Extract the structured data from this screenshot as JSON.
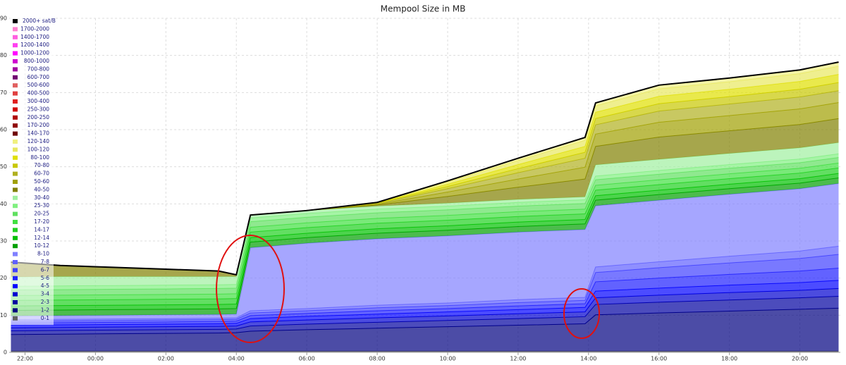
{
  "chart_data": {
    "type": "stacked_area",
    "title": "Mempool Size in MB",
    "x": [
      21.6,
      23,
      24.5,
      26,
      27.5,
      28,
      28.4,
      30,
      32,
      34,
      36,
      37.9,
      38.2,
      40,
      42,
      44,
      45.1
    ],
    "xlim": [
      21.55,
      45.15
    ],
    "xticks": [
      {
        "value": 22,
        "label": "22:00"
      },
      {
        "value": 24,
        "label": "00:00"
      },
      {
        "value": 26,
        "label": "02:00"
      },
      {
        "value": 28,
        "label": "04:00"
      },
      {
        "value": 30,
        "label": "06:00"
      },
      {
        "value": 32,
        "label": "08:00"
      },
      {
        "value": 34,
        "label": "10:00"
      },
      {
        "value": 36,
        "label": "12:00"
      },
      {
        "value": 38,
        "label": "14:00"
      },
      {
        "value": 40,
        "label": "16:00"
      },
      {
        "value": 42,
        "label": "18:00"
      },
      {
        "value": 44,
        "label": "20:00"
      }
    ],
    "ylim": [
      0,
      90
    ],
    "yticks": [
      0,
      10,
      20,
      30,
      40,
      50,
      60,
      70,
      80,
      90
    ],
    "grid": true,
    "legend": "top-left",
    "series": [
      {
        "name": "2000+ sat/B",
        "color": "#000000",
        "values": [
          0,
          0,
          0,
          0,
          0,
          0,
          0,
          0,
          0,
          0,
          0,
          0,
          0,
          0,
          0,
          0,
          0
        ]
      },
      {
        "name": "1700-2000",
        "color": "#ff80d0",
        "values": [
          0,
          0,
          0,
          0,
          0,
          0,
          0,
          0,
          0,
          0,
          0,
          0,
          0,
          0,
          0,
          0,
          0
        ]
      },
      {
        "name": "1400-1700",
        "color": "#ff60e0",
        "values": [
          0,
          0,
          0,
          0,
          0,
          0,
          0,
          0,
          0,
          0,
          0,
          0,
          0,
          0,
          0,
          0,
          0
        ]
      },
      {
        "name": "1200-1400",
        "color": "#ff40f0",
        "values": [
          0,
          0,
          0,
          0,
          0,
          0,
          0,
          0,
          0,
          0,
          0,
          0,
          0,
          0,
          0,
          0,
          0
        ]
      },
      {
        "name": "1000-1200",
        "color": "#ff00ff",
        "values": [
          0,
          0,
          0,
          0,
          0,
          0,
          0,
          0,
          0,
          0,
          0,
          0,
          0,
          0,
          0,
          0,
          0
        ]
      },
      {
        "name": "800-1000",
        "color": "#d000d0",
        "values": [
          0,
          0,
          0,
          0,
          0,
          0,
          0,
          0,
          0,
          0,
          0,
          0,
          0,
          0,
          0,
          0,
          0
        ]
      },
      {
        "name": "700-800",
        "color": "#a000a0",
        "values": [
          0,
          0,
          0,
          0,
          0,
          0,
          0,
          0,
          0,
          0,
          0,
          0,
          0,
          0,
          0,
          0,
          0
        ]
      },
      {
        "name": "600-700",
        "color": "#700070",
        "values": [
          0,
          0,
          0,
          0,
          0,
          0,
          0,
          0,
          0,
          0,
          0,
          0,
          0,
          0,
          0,
          0,
          0
        ]
      },
      {
        "name": "500-600",
        "color": "#e06060",
        "values": [
          0,
          0,
          0,
          0,
          0,
          0,
          0,
          0,
          0,
          0,
          0,
          0,
          0,
          0,
          0,
          0,
          0
        ]
      },
      {
        "name": "400-500",
        "color": "#e04040",
        "values": [
          0,
          0,
          0,
          0,
          0,
          0,
          0,
          0,
          0,
          0,
          0,
          0,
          0,
          0,
          0,
          0,
          0
        ]
      },
      {
        "name": "300-400",
        "color": "#e02020",
        "values": [
          0,
          0,
          0,
          0,
          0,
          0,
          0,
          0,
          0,
          0,
          0,
          0,
          0,
          0,
          0,
          0,
          0
        ]
      },
      {
        "name": "250-300",
        "color": "#d00000",
        "values": [
          0,
          0,
          0,
          0,
          0,
          0,
          0,
          0,
          0,
          0,
          0,
          0,
          0,
          0,
          0,
          0,
          0
        ]
      },
      {
        "name": "200-250",
        "color": "#b00000",
        "values": [
          0,
          0,
          0,
          0,
          0,
          0,
          0,
          0,
          0,
          0,
          0,
          0,
          0,
          0,
          0,
          0,
          0
        ]
      },
      {
        "name": "170-200",
        "color": "#900000",
        "values": [
          0,
          0,
          0,
          0,
          0,
          0,
          0,
          0,
          0,
          0,
          0,
          0,
          0,
          0,
          0,
          0,
          0
        ]
      },
      {
        "name": "140-170",
        "color": "#700000",
        "values": [
          0,
          0,
          0,
          0,
          0,
          0,
          0,
          0,
          0,
          0,
          0,
          0,
          0,
          0,
          0,
          0,
          0
        ]
      },
      {
        "name": "120-140",
        "color": "#f0f080",
        "values": [
          0,
          0,
          0,
          0,
          0,
          0,
          0,
          0,
          0,
          0.3,
          0.6,
          0.8,
          0.8,
          1,
          1,
          1,
          1.1
        ]
      },
      {
        "name": "100-120",
        "color": "#e8e860",
        "values": [
          0,
          0,
          0,
          0,
          0,
          0,
          0,
          0,
          0.1,
          0.6,
          1.1,
          1.6,
          1.7,
          2,
          2,
          2.1,
          2.2
        ]
      },
      {
        "name": "80-100",
        "color": "#e0e000",
        "values": [
          0,
          0,
          0,
          0,
          0,
          0,
          0,
          0,
          0.1,
          0.6,
          1.1,
          1.6,
          1.7,
          2,
          2,
          2.1,
          2.2
        ]
      },
      {
        "name": "70-80",
        "color": "#c8c800",
        "values": [
          0,
          0,
          0,
          0,
          0,
          0,
          0,
          0,
          0.1,
          0.6,
          1.1,
          1.6,
          1.7,
          2,
          2,
          2.1,
          2.2
        ]
      },
      {
        "name": "60-70",
        "color": "#b0b020",
        "values": [
          0,
          0,
          0,
          0,
          0,
          0,
          0,
          0,
          0.2,
          0.9,
          1.7,
          2.4,
          2.5,
          3,
          3.1,
          3.2,
          3.2
        ]
      },
      {
        "name": "50-60",
        "color": "#a0a000",
        "values": [
          0,
          0,
          0,
          0,
          0,
          0,
          0,
          0,
          0.2,
          1.2,
          2.2,
          3.2,
          3.3,
          4,
          4.1,
          4.2,
          4.3
        ]
      },
      {
        "name": "40-50",
        "color": "#808000",
        "values": [
          4,
          3,
          2.5,
          2,
          1.5,
          0.5,
          0,
          0,
          0.3,
          1.8,
          3.3,
          4.8,
          5,
          6,
          6.1,
          6.3,
          6.5
        ]
      },
      {
        "name": "30-40",
        "color": "#a0f0a0",
        "values": [
          2.5,
          2.5,
          2.4,
          2.3,
          2.2,
          2.1,
          0.8,
          0.8,
          0.8,
          0.8,
          0.8,
          0.8,
          3,
          3,
          3,
          3,
          3
        ]
      },
      {
        "name": "25-30",
        "color": "#80f080",
        "values": [
          1,
          1,
          1,
          1,
          1,
          1,
          1,
          1,
          1,
          1,
          1,
          1,
          1,
          1,
          1,
          1,
          1
        ]
      },
      {
        "name": "20-25",
        "color": "#60e060",
        "values": [
          1.5,
          1.5,
          1.5,
          1.5,
          1.5,
          1.5,
          1.5,
          1.5,
          1.5,
          1.5,
          1.5,
          1.5,
          1.5,
          1.5,
          1.5,
          1.5,
          1.5
        ]
      },
      {
        "name": "17-20",
        "color": "#40e040",
        "values": [
          1.3,
          1.3,
          1.3,
          1.3,
          1.3,
          1.3,
          1.3,
          1.3,
          1.3,
          1.3,
          1.3,
          1.3,
          1.3,
          1.3,
          1.3,
          1.3,
          1.3
        ]
      },
      {
        "name": "14-17",
        "color": "#20d020",
        "values": [
          1.5,
          1.5,
          1.5,
          1.5,
          1.5,
          1.5,
          1.5,
          1.5,
          1.5,
          1.5,
          1.5,
          1.5,
          1.5,
          1.5,
          1.5,
          1.5,
          1.5
        ]
      },
      {
        "name": "12-14",
        "color": "#00c000",
        "values": [
          1.2,
          1.2,
          1.2,
          1.2,
          1.2,
          1.2,
          1.2,
          1.2,
          1.2,
          1.2,
          1.2,
          1.2,
          1.2,
          1.2,
          1.2,
          1.2,
          1.2
        ]
      },
      {
        "name": "10-12",
        "color": "#00a000",
        "values": [
          1.5,
          1.5,
          1.5,
          1.5,
          1.5,
          1.5,
          1.5,
          1.5,
          1.5,
          1.5,
          1.5,
          1.5,
          1.5,
          1.5,
          1.5,
          1.5,
          1.5
        ]
      },
      {
        "name": "8-10",
        "color": "#8080ff",
        "values": [
          1,
          1,
          1,
          1,
          1,
          1,
          17,
          17.6,
          17.9,
          18.1,
          18.2,
          18.3,
          16.5,
          16.6,
          16.7,
          16.8,
          16.9
        ]
      },
      {
        "name": "7-8",
        "color": "#6060ff",
        "values": [
          0.4,
          0.4,
          0.4,
          0.4,
          0.4,
          0.4,
          0.6,
          0.6,
          0.7,
          0.7,
          0.8,
          0.8,
          1.5,
          1.6,
          1.8,
          2,
          2.2
        ]
      },
      {
        "name": "6-7",
        "color": "#4040ff",
        "values": [
          0.5,
          0.5,
          0.5,
          0.5,
          0.5,
          0.5,
          0.7,
          0.7,
          0.8,
          0.8,
          0.9,
          0.9,
          2.5,
          2.8,
          3.1,
          3.4,
          3.7
        ]
      },
      {
        "name": "5-6",
        "color": "#2020ff",
        "values": [
          0.6,
          0.6,
          0.6,
          0.6,
          0.6,
          0.6,
          0.8,
          0.8,
          0.9,
          0.9,
          1,
          1,
          2.5,
          2.7,
          2.9,
          3.1,
          3.3
        ]
      },
      {
        "name": "4-5",
        "color": "#0000ff",
        "values": [
          0.7,
          0.7,
          0.7,
          0.7,
          0.7,
          0.7,
          0.9,
          1,
          1,
          1.1,
          1.1,
          1.2,
          1.8,
          1.9,
          2,
          2.1,
          2.2
        ]
      },
      {
        "name": "3-4",
        "color": "#0000d0",
        "values": [
          0.8,
          0.8,
          0.8,
          0.8,
          0.8,
          0.8,
          1.1,
          1.1,
          1.2,
          1.2,
          1.3,
          1.3,
          1.8,
          1.9,
          2,
          2,
          2.1
        ]
      },
      {
        "name": "2-3",
        "color": "#0000a0",
        "values": [
          1,
          1,
          1,
          1,
          1,
          1,
          1.4,
          1.5,
          1.6,
          1.7,
          1.8,
          1.9,
          2.8,
          2.9,
          3,
          3.1,
          3.2
        ]
      },
      {
        "name": "1-2",
        "color": "#000080",
        "values": [
          4.5,
          4.6,
          4.7,
          4.8,
          4.9,
          5,
          5.4,
          5.8,
          6.2,
          6.6,
          7,
          7.4,
          9.8,
          10.3,
          10.8,
          11.3,
          11.6
        ]
      },
      {
        "name": "0-1",
        "color": "#606060",
        "values": [
          0.3,
          0.3,
          0.3,
          0.3,
          0.3,
          0.3,
          0.3,
          0.3,
          0.3,
          0.3,
          0.3,
          0.3,
          0.3,
          0.3,
          0.3,
          0.3,
          0.3
        ]
      }
    ]
  }
}
